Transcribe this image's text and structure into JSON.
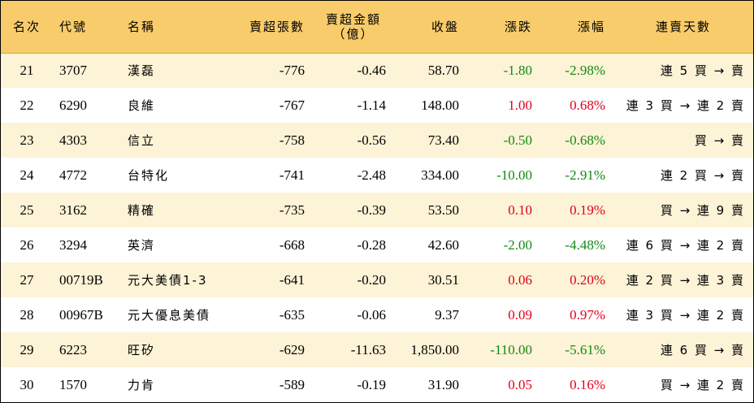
{
  "headers": {
    "rank": "名次",
    "code": "代號",
    "name": "名稱",
    "net_sell_lots": "賣超張數",
    "net_sell_amount_line1": "賣超金額",
    "net_sell_amount_line2": "（億）",
    "close": "收盤",
    "change": "漲跌",
    "change_pct": "漲幅",
    "streak": "連賣天數"
  },
  "colors": {
    "header_bg": "#f9cc6b",
    "row_alt_bg": "#fdf3d6",
    "up": "#e0001b",
    "down": "#138a13"
  },
  "rows": [
    {
      "rank": "21",
      "code": "3707",
      "name": "漢磊",
      "lots": "-776",
      "amount": "-0.46",
      "close": "58.70",
      "change": "-1.80",
      "pct": "-2.98%",
      "dir": "down",
      "streak": "連 5 買 → 賣"
    },
    {
      "rank": "22",
      "code": "6290",
      "name": "良維",
      "lots": "-767",
      "amount": "-1.14",
      "close": "148.00",
      "change": "1.00",
      "pct": "0.68%",
      "dir": "up",
      "streak": "連 3 買 → 連 2 賣"
    },
    {
      "rank": "23",
      "code": "4303",
      "name": "信立",
      "lots": "-758",
      "amount": "-0.56",
      "close": "73.40",
      "change": "-0.50",
      "pct": "-0.68%",
      "dir": "down",
      "streak": "買 → 賣"
    },
    {
      "rank": "24",
      "code": "4772",
      "name": "台特化",
      "lots": "-741",
      "amount": "-2.48",
      "close": "334.00",
      "change": "-10.00",
      "pct": "-2.91%",
      "dir": "down",
      "streak": "連 2 買 → 賣"
    },
    {
      "rank": "25",
      "code": "3162",
      "name": "精確",
      "lots": "-735",
      "amount": "-0.39",
      "close": "53.50",
      "change": "0.10",
      "pct": "0.19%",
      "dir": "up",
      "streak": "買 → 連 9 賣"
    },
    {
      "rank": "26",
      "code": "3294",
      "name": "英濟",
      "lots": "-668",
      "amount": "-0.28",
      "close": "42.60",
      "change": "-2.00",
      "pct": "-4.48%",
      "dir": "down",
      "streak": "連 6 買 → 連 2 賣"
    },
    {
      "rank": "27",
      "code": "00719B",
      "name": "元大美債1-3",
      "lots": "-641",
      "amount": "-0.20",
      "close": "30.51",
      "change": "0.06",
      "pct": "0.20%",
      "dir": "up",
      "streak": "連 2 買 → 連 3 賣"
    },
    {
      "rank": "28",
      "code": "00967B",
      "name": "元大優息美債",
      "lots": "-635",
      "amount": "-0.06",
      "close": "9.37",
      "change": "0.09",
      "pct": "0.97%",
      "dir": "up",
      "streak": "連 3 買 → 連 2 賣"
    },
    {
      "rank": "29",
      "code": "6223",
      "name": "旺矽",
      "lots": "-629",
      "amount": "-11.63",
      "close": "1,850.00",
      "change": "-110.00",
      "pct": "-5.61%",
      "dir": "down",
      "streak": "連 6 買 → 賣"
    },
    {
      "rank": "30",
      "code": "1570",
      "name": "力肯",
      "lots": "-589",
      "amount": "-0.19",
      "close": "31.90",
      "change": "0.05",
      "pct": "0.16%",
      "dir": "up",
      "streak": "買 → 連 2 賣"
    }
  ]
}
